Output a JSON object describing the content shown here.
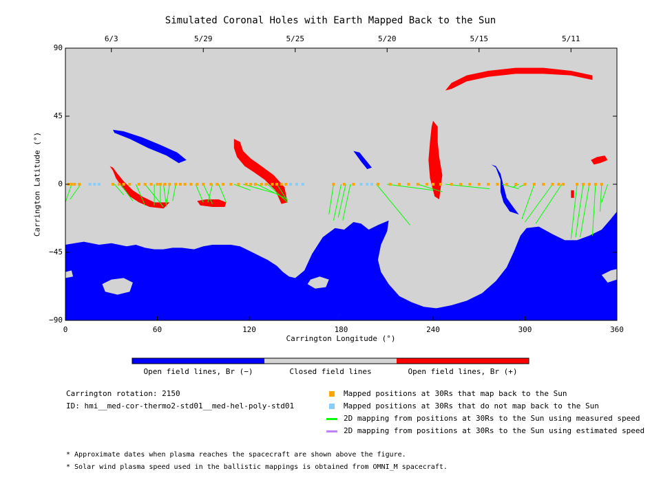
{
  "chart_data": {
    "type": "scatter",
    "title": "Simulated Coronal Holes with Earth Mapped Back to the Sun",
    "xlabel": "Carrington Longitude (°)",
    "ylabel": "Carrington Latitude (°)",
    "xlim": [
      0,
      360
    ],
    "ylim": [
      -90,
      90
    ],
    "x_ticks": [
      "0",
      "60",
      "120",
      "180",
      "240",
      "300",
      "360"
    ],
    "y_ticks": [
      "90",
      "45",
      "0",
      "−45",
      "−90"
    ],
    "x_tick_values": [
      0,
      60,
      120,
      180,
      240,
      300,
      360
    ],
    "y_tick_values": [
      90,
      45,
      0,
      -45,
      -90
    ],
    "top_axis": {
      "labels": [
        "6/3",
        "5/29",
        "5/25",
        "5/20",
        "5/15",
        "5/11"
      ],
      "longitudes": [
        30,
        90,
        150,
        210,
        270,
        330
      ]
    },
    "colorbar": {
      "labels": [
        "Open field lines, Br (−)",
        "Closed field lines",
        "Open field lines, Br (+)"
      ],
      "colors": [
        "#0000ff",
        "#d3d3d3",
        "#ff0000"
      ]
    },
    "mapped_positions": [
      2,
      4,
      6,
      9,
      31,
      35,
      38,
      42,
      48,
      52,
      56,
      60,
      62,
      65,
      68,
      72,
      75,
      78,
      82,
      86,
      90,
      95,
      99,
      103,
      108,
      113,
      118,
      121,
      124,
      128,
      131,
      135,
      138,
      141,
      144,
      175,
      182,
      188,
      204,
      212,
      218,
      224,
      230,
      236,
      240,
      245,
      252,
      258,
      264,
      270,
      276,
      282,
      288,
      294,
      300,
      306,
      312,
      318,
      322,
      325,
      334,
      338,
      342,
      346,
      350
    ],
    "unmapped_positions": [
      16,
      19,
      22,
      147,
      151,
      155,
      193,
      197,
      200
    ],
    "measured_speed_mappings": [
      [
        0,
        0,
        0,
        -15
      ],
      [
        4,
        0,
        0,
        -12
      ],
      [
        10,
        0,
        3,
        -10
      ],
      [
        32,
        0,
        38,
        -7
      ],
      [
        36,
        0,
        44,
        -11
      ],
      [
        46,
        0,
        52,
        -14
      ],
      [
        52,
        0,
        64,
        -15
      ],
      [
        58,
        0,
        58,
        -14
      ],
      [
        62,
        0,
        62,
        -12
      ],
      [
        64,
        0,
        66,
        -15
      ],
      [
        68,
        0,
        66,
        -13
      ],
      [
        72,
        0,
        70,
        -11
      ],
      [
        85,
        0,
        90,
        -12
      ],
      [
        90,
        0,
        96,
        -13
      ],
      [
        96,
        0,
        93,
        -12
      ],
      [
        100,
        0,
        105,
        -12
      ],
      [
        110,
        0,
        121,
        -4
      ],
      [
        116,
        0,
        137,
        -6
      ],
      [
        125,
        0,
        145,
        -10
      ],
      [
        132,
        0,
        145,
        -12
      ],
      [
        138,
        0,
        145,
        -11
      ],
      [
        175,
        0,
        172,
        -20
      ],
      [
        180,
        0,
        175,
        -24
      ],
      [
        183,
        0,
        178,
        -22
      ],
      [
        186,
        0,
        181,
        -24
      ],
      [
        203,
        0,
        225,
        -27
      ],
      [
        210,
        0,
        240,
        -4
      ],
      [
        230,
        0,
        246,
        -5
      ],
      [
        248,
        0,
        277,
        -3
      ],
      [
        285,
        0,
        296,
        -3
      ],
      [
        296,
        0,
        292,
        -2
      ],
      [
        300,
        0,
        296,
        -2
      ],
      [
        306,
        0,
        298,
        -23
      ],
      [
        318,
        0,
        300,
        -25
      ],
      [
        324,
        0,
        307,
        -26
      ],
      [
        334,
        0,
        330,
        -36
      ],
      [
        338,
        0,
        333,
        -35
      ],
      [
        342,
        0,
        336,
        -35
      ],
      [
        346,
        0,
        344,
        -34
      ],
      [
        350,
        0,
        349,
        -18
      ],
      [
        354,
        0,
        350,
        -12
      ]
    ],
    "negative_polarity_holes": [
      {
        "label": "south polar",
        "lon_range": [
          0,
          360
        ],
        "lat_range": [
          -90,
          -40
        ]
      },
      {
        "label": "northern streak",
        "lon_range": [
          31,
          79
        ],
        "lat_range": [
          26,
          36
        ]
      },
      {
        "label": "equatorial extension",
        "lon_range": [
          167,
          216
        ],
        "lat_range": [
          -42,
          20
        ]
      },
      {
        "label": "equatorial extension 2",
        "lon_range": [
          281,
          313
        ],
        "lat_range": [
          -30,
          12
        ]
      }
    ],
    "positive_polarity_holes": [
      {
        "label": "northern arc",
        "lon_range": [
          245,
          345
        ],
        "lat_range": [
          60,
          77
        ]
      },
      {
        "label": "east equatorial",
        "lon_range": [
          240,
          244
        ],
        "lat_range": [
          -12,
          42
        ]
      },
      {
        "label": "mid band",
        "lon_range": [
          110,
          145
        ],
        "lat_range": [
          -14,
          30
        ]
      },
      {
        "label": "west patch",
        "lon_range": [
          30,
          95
        ],
        "lat_range": [
          -16,
          12
        ]
      }
    ]
  },
  "notes": {
    "carrington_rotation": "Carrington rotation: 2150",
    "id": "ID: hmi__med-cor-thermo2-std01__med-hel-poly-std01",
    "footnote_1": "* Approximate dates when plasma reaches the spacecraft are shown above the figure.",
    "footnote_2": "* Solar wind plasma speed used in the ballistic mappings is obtained from OMNI_M spacecraft."
  },
  "legend": {
    "items": [
      {
        "label": "Mapped positions at 30Rs that map back to the Sun",
        "color": "#ffa500",
        "kind": "square"
      },
      {
        "label": "Mapped positions at 30Rs that do not map back to the Sun",
        "color": "#87cefa",
        "kind": "square"
      },
      {
        "label": "2D mapping from positions at 30Rs to the Sun using measured speed",
        "color": "#00ff00",
        "kind": "line"
      },
      {
        "label": "2D mapping from positions at 30Rs to the Sun using estimated speed",
        "color": "#bf7fff",
        "kind": "line"
      }
    ]
  }
}
